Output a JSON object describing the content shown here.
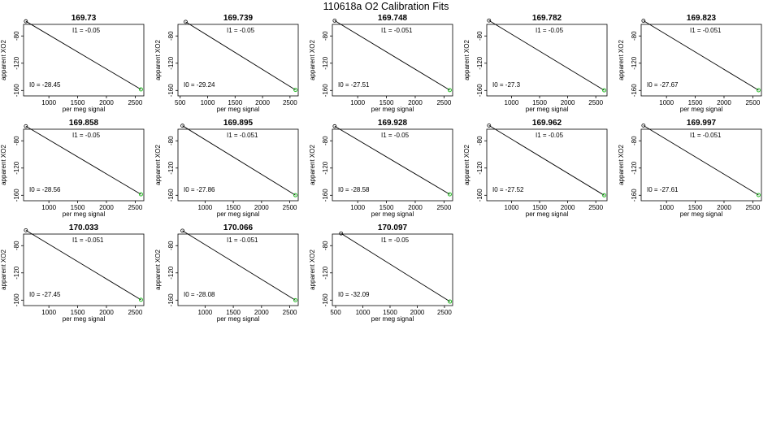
{
  "page": {
    "title": "110618a    O2 Calibration Fits"
  },
  "chart_data": [
    {
      "type": "line",
      "title": "169.73",
      "xlabel": "per meg signal",
      "ylabel": "apparent XO2",
      "x_ticks": [
        1000,
        1500,
        2000,
        2500
      ],
      "y_ticks": [
        -80,
        -120,
        -160
      ],
      "xlim": [
        560,
        2650
      ],
      "ylim": [
        -168,
        -63
      ],
      "series": [
        {
          "x": [
            600,
            2600
          ],
          "y": [
            -58.45,
            -158.45
          ]
        }
      ],
      "points_start": {
        "x": [
          600
        ],
        "y": [
          -58.45
        ]
      },
      "points_end": {
        "x": [
          2600
        ],
        "y": [
          -158.45
        ]
      },
      "annotations": {
        "i1": "I1 =  -0.05",
        "i0": "I0 =  -28.45"
      }
    },
    {
      "type": "line",
      "title": "169.739",
      "xlabel": "per meg signal",
      "ylabel": "apparent XO2",
      "x_ticks": [
        500,
        1000,
        1500,
        2000,
        2500
      ],
      "y_ticks": [
        -80,
        -120,
        -160
      ],
      "xlim": [
        460,
        2650
      ],
      "ylim": [
        -168,
        -63
      ],
      "series": [
        {
          "x": [
            600,
            2600
          ],
          "y": [
            -59.24,
            -159.24
          ]
        }
      ],
      "points_start": {
        "x": [
          600
        ],
        "y": [
          -59.24
        ]
      },
      "points_end": {
        "x": [
          2600
        ],
        "y": [
          -159.24
        ]
      },
      "annotations": {
        "i1": "I1 =  -0.05",
        "i0": "I0 =  -29.24"
      }
    },
    {
      "type": "line",
      "title": "169.748",
      "xlabel": "per meg signal",
      "ylabel": "apparent XO2",
      "x_ticks": [
        1000,
        1500,
        2000,
        2500
      ],
      "y_ticks": [
        -80,
        -120,
        -160
      ],
      "xlim": [
        560,
        2650
      ],
      "ylim": [
        -168,
        -63
      ],
      "series": [
        {
          "x": [
            600,
            2600
          ],
          "y": [
            -57.51,
            -159.51
          ]
        }
      ],
      "points_start": {
        "x": [
          600
        ],
        "y": [
          -57.51
        ]
      },
      "points_end": {
        "x": [
          2600
        ],
        "y": [
          -159.51
        ]
      },
      "annotations": {
        "i1": "I1 =  -0.051",
        "i0": "I0 =  -27.51"
      }
    },
    {
      "type": "line",
      "title": "169.782",
      "xlabel": "per meg signal",
      "ylabel": "apparent XO2",
      "x_ticks": [
        1000,
        1500,
        2000,
        2500
      ],
      "y_ticks": [
        -80,
        -120,
        -160
      ],
      "xlim": [
        560,
        2700
      ],
      "ylim": [
        -168,
        -63
      ],
      "series": [
        {
          "x": [
            600,
            2650
          ],
          "y": [
            -57.3,
            -159.8
          ]
        }
      ],
      "points_start": {
        "x": [
          600
        ],
        "y": [
          -57.3
        ]
      },
      "points_end": {
        "x": [
          2650
        ],
        "y": [
          -159.8
        ]
      },
      "annotations": {
        "i1": "I1 =  -0.05",
        "i0": "I0 =  -27.3"
      }
    },
    {
      "type": "line",
      "title": "169.823",
      "xlabel": "per meg signal",
      "ylabel": "apparent XO2",
      "x_ticks": [
        1000,
        1500,
        2000,
        2500
      ],
      "y_ticks": [
        -80,
        -120,
        -160
      ],
      "xlim": [
        560,
        2650
      ],
      "ylim": [
        -168,
        -63
      ],
      "series": [
        {
          "x": [
            600,
            2600
          ],
          "y": [
            -57.67,
            -159.67
          ]
        }
      ],
      "points_start": {
        "x": [
          600
        ],
        "y": [
          -57.67
        ]
      },
      "points_end": {
        "x": [
          2600
        ],
        "y": [
          -159.67
        ]
      },
      "annotations": {
        "i1": "I1 =  -0.051",
        "i0": "I0 =  -27.67"
      }
    },
    {
      "type": "line",
      "title": "169.858",
      "xlabel": "per meg signal",
      "ylabel": "apparent XO2",
      "x_ticks": [
        1000,
        1500,
        2000,
        2500
      ],
      "y_ticks": [
        -80,
        -120,
        -160
      ],
      "xlim": [
        560,
        2650
      ],
      "ylim": [
        -168,
        -63
      ],
      "series": [
        {
          "x": [
            600,
            2600
          ],
          "y": [
            -58.56,
            -158.56
          ]
        }
      ],
      "points_start": {
        "x": [
          600
        ],
        "y": [
          -58.56
        ]
      },
      "points_end": {
        "x": [
          2600
        ],
        "y": [
          -158.56
        ]
      },
      "annotations": {
        "i1": "I1 =  -0.05",
        "i0": "I0 =  -28.56"
      }
    },
    {
      "type": "line",
      "title": "169.895",
      "xlabel": "per meg signal",
      "ylabel": "apparent XO2",
      "x_ticks": [
        1000,
        1500,
        2000,
        2500
      ],
      "y_ticks": [
        -80,
        -120,
        -160
      ],
      "xlim": [
        520,
        2650
      ],
      "ylim": [
        -168,
        -63
      ],
      "series": [
        {
          "x": [
            600,
            2600
          ],
          "y": [
            -57.86,
            -159.86
          ]
        }
      ],
      "points_start": {
        "x": [
          600
        ],
        "y": [
          -57.86
        ]
      },
      "points_end": {
        "x": [
          2600
        ],
        "y": [
          -159.86
        ]
      },
      "annotations": {
        "i1": "I1 =  -0.051",
        "i0": "I0 =  -27.86"
      }
    },
    {
      "type": "line",
      "title": "169.928",
      "xlabel": "per meg signal",
      "ylabel": "apparent XO2",
      "x_ticks": [
        1000,
        1500,
        2000,
        2500
      ],
      "y_ticks": [
        -80,
        -120,
        -160
      ],
      "xlim": [
        560,
        2650
      ],
      "ylim": [
        -168,
        -63
      ],
      "series": [
        {
          "x": [
            600,
            2600
          ],
          "y": [
            -58.58,
            -158.58
          ]
        }
      ],
      "points_start": {
        "x": [
          600
        ],
        "y": [
          -58.58
        ]
      },
      "points_end": {
        "x": [
          2600
        ],
        "y": [
          -158.58
        ]
      },
      "annotations": {
        "i1": "I1 =  -0.05",
        "i0": "I0 =  -28.58"
      }
    },
    {
      "type": "line",
      "title": "169.962",
      "xlabel": "per meg signal",
      "ylabel": "apparent XO2",
      "x_ticks": [
        1000,
        1500,
        2000,
        2500
      ],
      "y_ticks": [
        -80,
        -120,
        -160
      ],
      "xlim": [
        560,
        2700
      ],
      "ylim": [
        -168,
        -63
      ],
      "series": [
        {
          "x": [
            600,
            2650
          ],
          "y": [
            -57.52,
            -160.02
          ]
        }
      ],
      "points_start": {
        "x": [
          600
        ],
        "y": [
          -57.52
        ]
      },
      "points_end": {
        "x": [
          2650
        ],
        "y": [
          -160.02
        ]
      },
      "annotations": {
        "i1": "I1 =  -0.05",
        "i0": "I0 =  -27.52"
      }
    },
    {
      "type": "line",
      "title": "169.997",
      "xlabel": "per meg signal",
      "ylabel": "apparent XO2",
      "x_ticks": [
        1000,
        1500,
        2000,
        2500
      ],
      "y_ticks": [
        -80,
        -120,
        -160
      ],
      "xlim": [
        560,
        2650
      ],
      "ylim": [
        -168,
        -63
      ],
      "series": [
        {
          "x": [
            600,
            2600
          ],
          "y": [
            -57.61,
            -159.61
          ]
        }
      ],
      "points_start": {
        "x": [
          600
        ],
        "y": [
          -57.61
        ]
      },
      "points_end": {
        "x": [
          2600
        ],
        "y": [
          -159.61
        ]
      },
      "annotations": {
        "i1": "I1 =  -0.051",
        "i0": "I0 =  -27.61"
      }
    },
    {
      "type": "line",
      "title": "170.033",
      "xlabel": "per meg signal",
      "ylabel": "apparent XO2",
      "x_ticks": [
        1000,
        1500,
        2000,
        2500
      ],
      "y_ticks": [
        -80,
        -120,
        -160
      ],
      "xlim": [
        560,
        2650
      ],
      "ylim": [
        -168,
        -63
      ],
      "series": [
        {
          "x": [
            600,
            2600
          ],
          "y": [
            -57.45,
            -159.45
          ]
        }
      ],
      "points_start": {
        "x": [
          600
        ],
        "y": [
          -57.45
        ]
      },
      "points_end": {
        "x": [
          2600
        ],
        "y": [
          -159.45
        ]
      },
      "annotations": {
        "i1": "I1 =  -0.051",
        "i0": "I0 =  -27.45"
      }
    },
    {
      "type": "line",
      "title": "170.066",
      "xlabel": "per meg signal",
      "ylabel": "apparent XO2",
      "x_ticks": [
        1000,
        1500,
        2000,
        2500
      ],
      "y_ticks": [
        -80,
        -120,
        -160
      ],
      "xlim": [
        520,
        2650
      ],
      "ylim": [
        -168,
        -63
      ],
      "series": [
        {
          "x": [
            600,
            2600
          ],
          "y": [
            -58.08,
            -160.08
          ]
        }
      ],
      "points_start": {
        "x": [
          600
        ],
        "y": [
          -58.08
        ]
      },
      "points_end": {
        "x": [
          2600
        ],
        "y": [
          -160.08
        ]
      },
      "annotations": {
        "i1": "I1 =  -0.051",
        "i0": "I0 =  -28.08"
      }
    },
    {
      "type": "line",
      "title": "170.097",
      "xlabel": "per meg signal",
      "ylabel": "apparent XO2",
      "x_ticks": [
        500,
        1000,
        1500,
        2000,
        2500
      ],
      "y_ticks": [
        -80,
        -120,
        -160
      ],
      "xlim": [
        440,
        2650
      ],
      "ylim": [
        -168,
        -63
      ],
      "series": [
        {
          "x": [
            600,
            2600
          ],
          "y": [
            -62.09,
            -162.09
          ]
        }
      ],
      "points_start": {
        "x": [
          600
        ],
        "y": [
          -62.09
        ]
      },
      "points_end": {
        "x": [
          2600
        ],
        "y": [
          -162.09
        ]
      },
      "annotations": {
        "i1": "I1 =  -0.05",
        "i0": "I0 =  -32.09"
      }
    }
  ],
  "colors": {
    "axes": "#000000",
    "fit_line": "#000000",
    "start_point": "#000000",
    "end_point": "#22bb22"
  }
}
